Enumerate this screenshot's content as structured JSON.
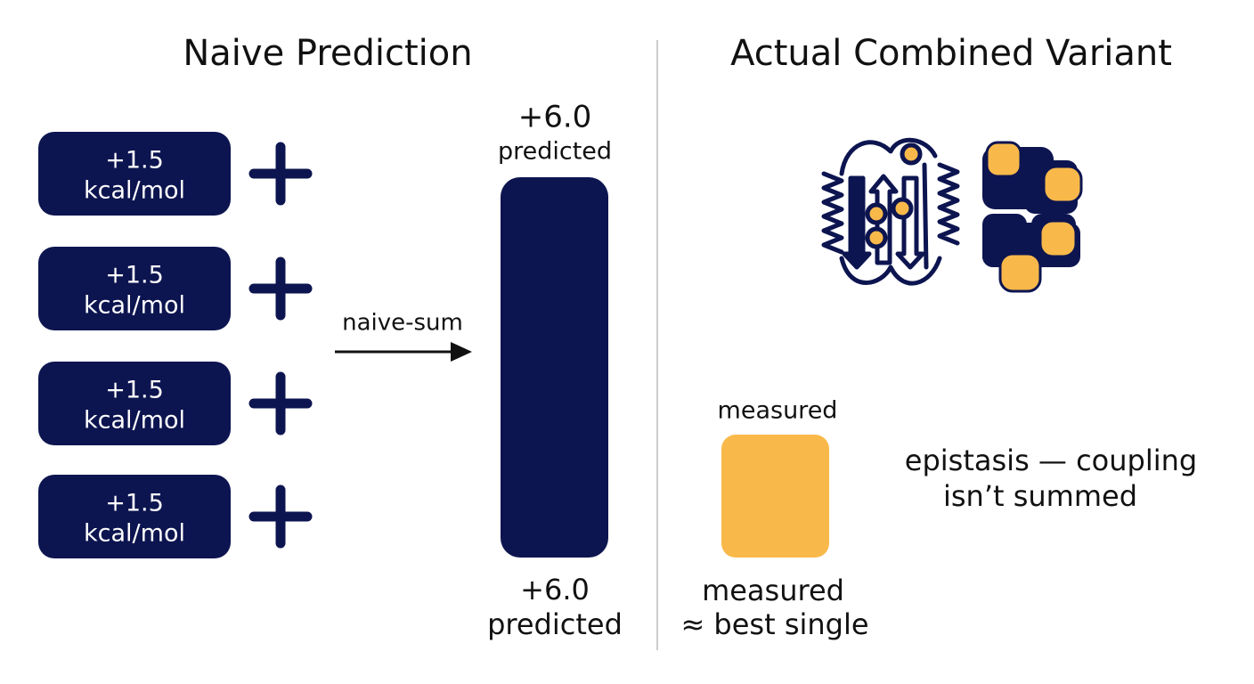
{
  "left": {
    "title": "Naive Prediction",
    "terms": [
      {
        "value": "+1.5",
        "unit": "kcal/mol"
      },
      {
        "value": "+1.5",
        "unit": "kcal/mol"
      },
      {
        "value": "+1.5",
        "unit": "kcal/mol"
      },
      {
        "value": "+1.5",
        "unit": "kcal/mol"
      }
    ],
    "arrow_label": "naive-sum",
    "top_label": {
      "value": "+6.0",
      "caption": "predicted"
    },
    "bottom_label": {
      "value": "+6.0",
      "caption": "predicted"
    }
  },
  "right": {
    "title": "Actual Combined Variant",
    "measured_top": "measured",
    "measured_bottom": [
      "measured",
      "≈ best single"
    ],
    "note": [
      "epistasis — coupling",
      "isn’t summed"
    ]
  }
}
